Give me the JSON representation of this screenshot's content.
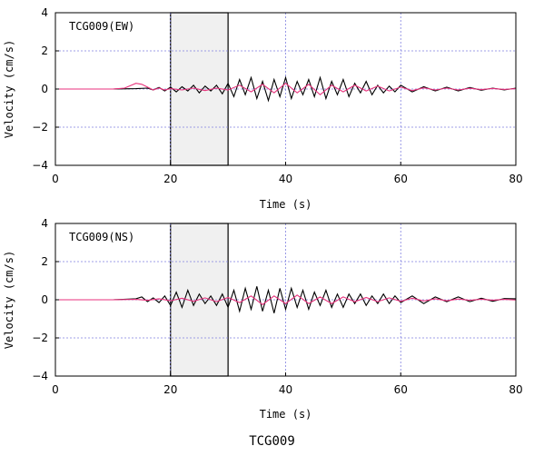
{
  "figure_title": "TCG009",
  "colors": {
    "black_trace": "#000000",
    "pink_trace": "#e8327c",
    "grid": "#8080e0",
    "window_fill": "#f0f0f0"
  },
  "chart_data": [
    {
      "type": "line",
      "station_label": "TCG009(EW)",
      "xlabel": "Time (s)",
      "ylabel": "Velocity (cm/s)",
      "xlim": [
        0,
        80
      ],
      "ylim": [
        -4,
        4
      ],
      "xticks": [
        "0",
        "20",
        "40",
        "60",
        "80"
      ],
      "yticks": [
        "4",
        "2",
        "0",
        "−2",
        "−4"
      ],
      "grid": true,
      "shaded_window": [
        20,
        30
      ],
      "series": [
        {
          "color": "black",
          "x": [
            0,
            10,
            14,
            16,
            17,
            18,
            19,
            20,
            21,
            22,
            23,
            24,
            25,
            26,
            27,
            28,
            29,
            30,
            31,
            32,
            33,
            34,
            35,
            36,
            37,
            38,
            39,
            40,
            41,
            42,
            43,
            44,
            45,
            46,
            47,
            48,
            49,
            50,
            51,
            52,
            53,
            54,
            55,
            56,
            57,
            58,
            59,
            60,
            62,
            64,
            66,
            68,
            70,
            72,
            74,
            76,
            78,
            80
          ],
          "y": [
            0,
            0,
            0.02,
            0.05,
            -0.05,
            0.08,
            -0.1,
            0.1,
            -0.15,
            0.12,
            -0.1,
            0.2,
            -0.2,
            0.15,
            -0.1,
            0.2,
            -0.25,
            0.3,
            -0.4,
            0.5,
            -0.3,
            0.6,
            -0.5,
            0.4,
            -0.6,
            0.5,
            -0.4,
            0.6,
            -0.5,
            0.4,
            -0.3,
            0.5,
            -0.4,
            0.6,
            -0.5,
            0.4,
            -0.3,
            0.5,
            -0.4,
            0.3,
            -0.2,
            0.4,
            -0.3,
            0.2,
            -0.2,
            0.15,
            -0.15,
            0.2,
            -0.15,
            0.12,
            -0.1,
            0.1,
            -0.1,
            0.08,
            -0.06,
            0.05,
            -0.05,
            0.05
          ]
        },
        {
          "color": "pink",
          "x": [
            0,
            10,
            12,
            14,
            15,
            16,
            17,
            18,
            19,
            20,
            22,
            24,
            26,
            28,
            30,
            32,
            34,
            36,
            38,
            40,
            42,
            44,
            46,
            48,
            50,
            52,
            54,
            56,
            58,
            60,
            62,
            64,
            66,
            68,
            70,
            72,
            74,
            76,
            78,
            80
          ],
          "y": [
            0,
            0,
            0.05,
            0.3,
            0.25,
            0.1,
            -0.05,
            0.05,
            -0.05,
            0.02,
            -0.05,
            0.05,
            -0.08,
            0.05,
            -0.05,
            0.2,
            -0.15,
            0.25,
            -0.2,
            0.3,
            -0.2,
            0.25,
            -0.3,
            0.2,
            -0.15,
            0.2,
            -0.1,
            0.15,
            -0.1,
            0.1,
            -0.08,
            0.06,
            -0.05,
            0.05,
            -0.05,
            0.04,
            -0.03,
            0.03,
            -0.02,
            0.02
          ]
        }
      ]
    },
    {
      "type": "line",
      "station_label": "TCG009(NS)",
      "xlabel": "Time (s)",
      "ylabel": "Velocity (cm/s)",
      "xlim": [
        0,
        80
      ],
      "ylim": [
        -4,
        4
      ],
      "xticks": [
        "0",
        "20",
        "40",
        "60",
        "80"
      ],
      "yticks": [
        "4",
        "2",
        "0",
        "−2",
        "−4"
      ],
      "grid": true,
      "shaded_window": [
        20,
        30
      ],
      "series": [
        {
          "color": "black",
          "x": [
            0,
            10,
            14,
            15,
            16,
            17,
            18,
            19,
            20,
            21,
            22,
            23,
            24,
            25,
            26,
            27,
            28,
            29,
            30,
            31,
            32,
            33,
            34,
            35,
            36,
            37,
            38,
            39,
            40,
            41,
            42,
            43,
            44,
            45,
            46,
            47,
            48,
            49,
            50,
            51,
            52,
            53,
            54,
            55,
            56,
            57,
            58,
            59,
            60,
            62,
            64,
            66,
            68,
            70,
            72,
            74,
            76,
            78,
            80
          ],
          "y": [
            0,
            0,
            0.05,
            0.15,
            -0.1,
            0.1,
            -0.15,
            0.2,
            -0.3,
            0.4,
            -0.4,
            0.5,
            -0.3,
            0.3,
            -0.2,
            0.2,
            -0.3,
            0.3,
            -0.4,
            0.5,
            -0.6,
            0.6,
            -0.5,
            0.7,
            -0.6,
            0.5,
            -0.7,
            0.6,
            -0.5,
            0.6,
            -0.4,
            0.5,
            -0.5,
            0.4,
            -0.3,
            0.5,
            -0.4,
            0.3,
            -0.4,
            0.3,
            -0.2,
            0.3,
            -0.3,
            0.2,
            -0.2,
            0.3,
            -0.2,
            0.2,
            -0.15,
            0.2,
            -0.2,
            0.15,
            -0.1,
            0.15,
            -0.1,
            0.08,
            -0.08,
            0.06,
            0.05
          ]
        },
        {
          "color": "pink",
          "x": [
            0,
            10,
            14,
            16,
            18,
            20,
            22,
            24,
            26,
            28,
            30,
            32,
            34,
            36,
            38,
            40,
            42,
            44,
            46,
            48,
            50,
            52,
            54,
            56,
            58,
            60,
            62,
            64,
            66,
            68,
            70,
            72,
            74,
            76,
            78,
            80
          ],
          "y": [
            0,
            0,
            0.02,
            -0.03,
            0.05,
            -0.05,
            0.08,
            -0.08,
            0.1,
            -0.1,
            0.12,
            -0.15,
            0.2,
            -0.25,
            0.2,
            -0.2,
            0.25,
            -0.2,
            0.15,
            -0.2,
            0.15,
            -0.1,
            0.12,
            -0.1,
            0.1,
            -0.08,
            0.08,
            -0.06,
            0.05,
            -0.05,
            0.04,
            -0.03,
            0.03,
            -0.02,
            0.02,
            -0.01
          ]
        }
      ]
    }
  ]
}
